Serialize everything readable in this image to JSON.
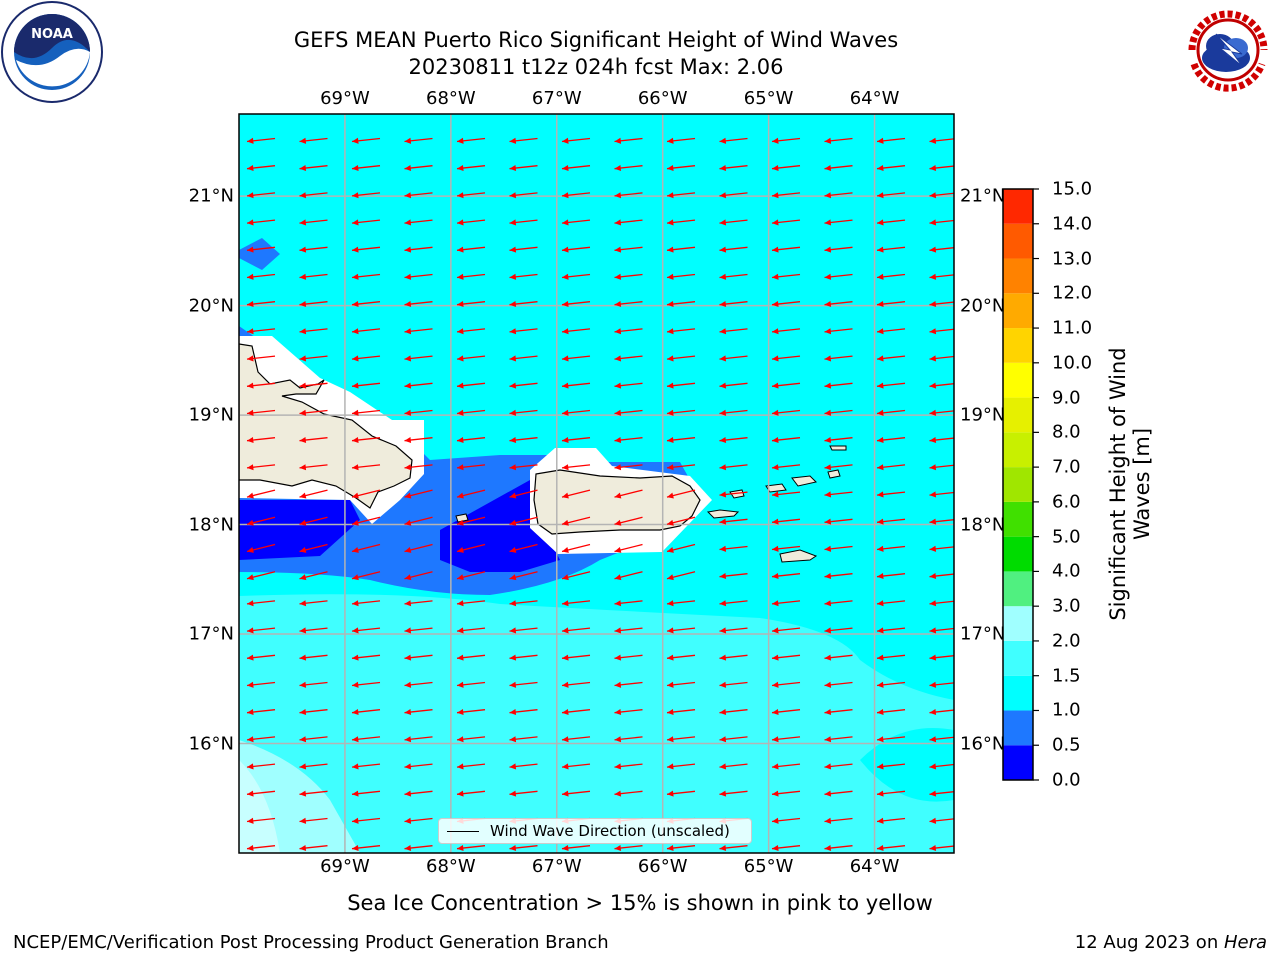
{
  "header": {
    "title_line1": "GEFS MEAN Puerto Rico Significant Height of Wind Waves",
    "title_line2": "20230811 t12z 024h fcst   Max: 2.06"
  },
  "logos": {
    "left": {
      "icon": "noaa-logo",
      "text": "NOAA"
    },
    "right": {
      "icon": "national-weather-service-logo",
      "text": "NATIONAL WEATHER SERVICE"
    }
  },
  "map": {
    "lon_ticks": [
      "69°W",
      "68°W",
      "67°W",
      "66°W",
      "65°W",
      "64°W"
    ],
    "lat_ticks": [
      "21°N",
      "20°N",
      "19°N",
      "18°N",
      "17°N",
      "16°N"
    ],
    "extent": {
      "lon_min": -70.0,
      "lon_max": -63.25,
      "lat_min": 15.0,
      "lat_max": 21.75
    },
    "land_color": "#efecdc",
    "arrow_color": "#ff0000",
    "wave_direction": "westward (toward west-southwest)",
    "gridlines": true
  },
  "colorbar": {
    "title_line1": "Significant Height of Wind",
    "title_line2": "Waves [m]",
    "levels": [
      "0.0",
      "0.5",
      "1.0",
      "1.5",
      "2.0",
      "3.0",
      "4.0",
      "5.0",
      "6.0",
      "7.0",
      "8.0",
      "9.0",
      "10.0",
      "11.0",
      "12.0",
      "13.0",
      "14.0",
      "15.0"
    ],
    "colors": [
      "#0000ff",
      "#1e78ff",
      "#00ffff",
      "#40ffff",
      "#a0ffff",
      "#50f080",
      "#00dc00",
      "#40e000",
      "#a0e600",
      "#c8f000",
      "#e6f000",
      "#ffff00",
      "#ffd400",
      "#ffaa00",
      "#ff8200",
      "#ff5a00",
      "#ff2800"
    ]
  },
  "legend": {
    "label": "Wind Wave Direction (unscaled)"
  },
  "notes": {
    "sea_ice": "Sea Ice Concentration > 15% is shown in pink to yellow"
  },
  "footer": {
    "left": "NCEP/EMC/Verification Post Processing Product Generation Branch",
    "right_date": "12 Aug 2023 on ",
    "right_machine": "Hera"
  }
}
